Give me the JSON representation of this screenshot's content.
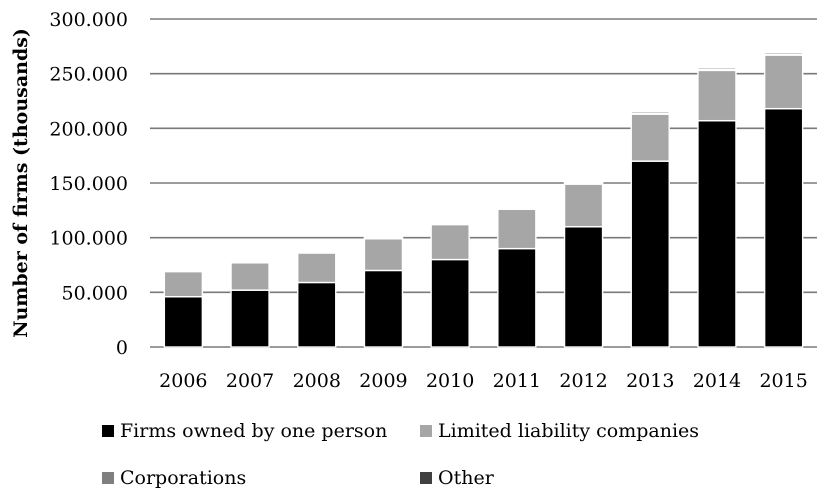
{
  "chart_data": {
    "type": "bar",
    "stacked": true,
    "title": "",
    "xlabel": "",
    "ylabel": "Number of firms (thousands)",
    "ylim": [
      0,
      300000
    ],
    "y_ticks": [
      "0",
      "50.000",
      "100.000",
      "150.000",
      "200.000",
      "250.000",
      "300.000"
    ],
    "y_tick_values": [
      0,
      50000,
      100000,
      150000,
      200000,
      250000,
      300000
    ],
    "grid": true,
    "legend_position": "bottom",
    "categories": [
      "2006",
      "2007",
      "2008",
      "2009",
      "2010",
      "2011",
      "2012",
      "2013",
      "2014",
      "2015"
    ],
    "series": [
      {
        "name": "Firms owned by one person",
        "color": "#000000",
        "values": [
          46000,
          52000,
          59000,
          70000,
          80000,
          90000,
          110000,
          170000,
          207000,
          218000
        ]
      },
      {
        "name": "Limited liability companies",
        "color": "#a6a6a6",
        "values": [
          23000,
          25000,
          27000,
          29000,
          32000,
          36000,
          39000,
          43000,
          46000,
          49000
        ]
      },
      {
        "name": "Corporations",
        "color": "#7f7f7f",
        "values": [
          1000,
          1000,
          1000,
          1000,
          1000,
          1000,
          1000,
          1000,
          1000,
          1000
        ]
      },
      {
        "name": "Other",
        "color": "#404040",
        "values": [
          1000,
          1000,
          1000,
          1000,
          1000,
          1000,
          1000,
          1500,
          1500,
          1500
        ]
      }
    ]
  }
}
